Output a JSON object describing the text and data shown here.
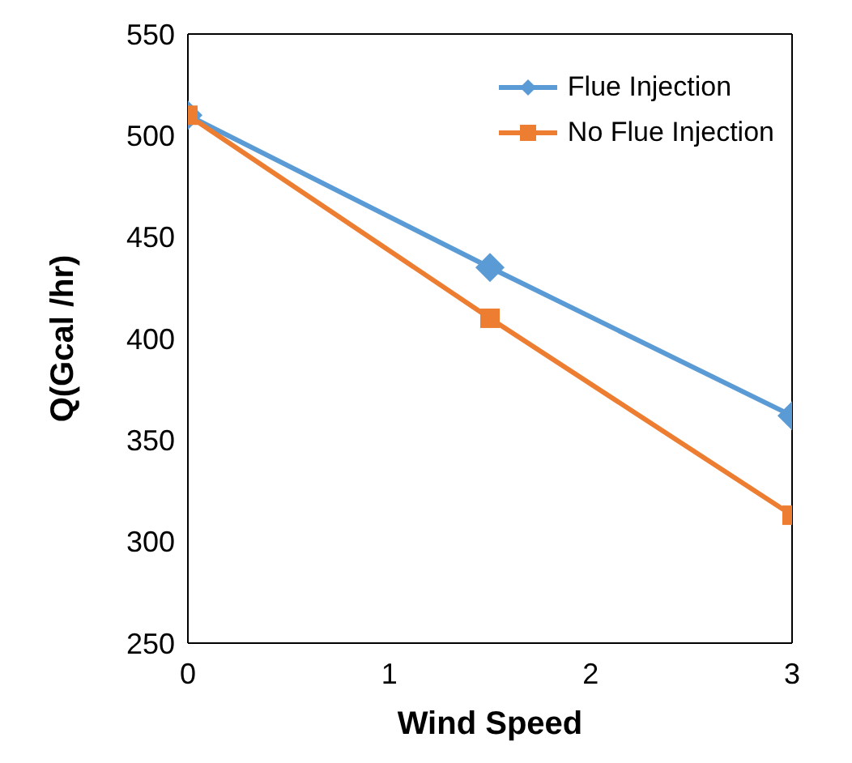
{
  "chart_data": {
    "type": "line",
    "xlabel": "Wind Speed",
    "ylabel": "Q(Gcal /hr)",
    "x": [
      0,
      1.5,
      3
    ],
    "series": [
      {
        "name": "Flue Injection",
        "color": "#5b9bd5",
        "values": [
          510,
          435,
          362
        ],
        "marker": "diamond"
      },
      {
        "name": "No Flue Injection",
        "color": "#ed7d31",
        "values": [
          510,
          410,
          313
        ],
        "marker": "square"
      }
    ],
    "xlim": [
      0,
      3
    ],
    "xticks": [
      0,
      1,
      2,
      3
    ],
    "ylim": [
      250,
      550
    ],
    "yticks": [
      250,
      300,
      350,
      400,
      450,
      500,
      550
    ],
    "grid": false,
    "legend": "top right"
  }
}
